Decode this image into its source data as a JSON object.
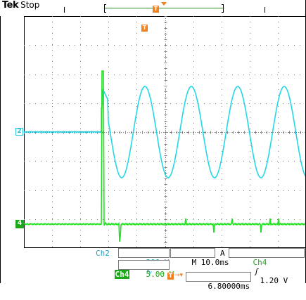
{
  "header": {
    "brand": "Tek",
    "acquisition_state": "Stop"
  },
  "markers": {
    "ch2": "2",
    "ch4": "4",
    "trigger": "T"
  },
  "readouts": {
    "ch2_label": "Ch2",
    "ch2_scale": "200 V",
    "ch2_coupling_symbol": "∿",
    "timebase": "M 10.0ms",
    "trigger_mode": "A",
    "trigger_source": "Ch4",
    "trigger_slope_symbol": "ʃ",
    "trigger_level": "1.20 V",
    "ch4_label": "Ch4",
    "ch4_scale": "5.00 V",
    "trigger_position_icon": "T→▾",
    "trigger_position": "6.80000ms"
  },
  "colors": {
    "ch2": "#22d8e8",
    "ch4": "#22e022",
    "trigger": "#f08020",
    "grid": "#808080"
  },
  "waveforms": {
    "ch2": {
      "description_units": "divisions",
      "flat_level_div": 0,
      "sine_cycles_visible": 5,
      "amplitude_div": 2.0
    },
    "ch4": {
      "flat_level_div": -3.8,
      "spike_peak_div": 2.4
    }
  }
}
